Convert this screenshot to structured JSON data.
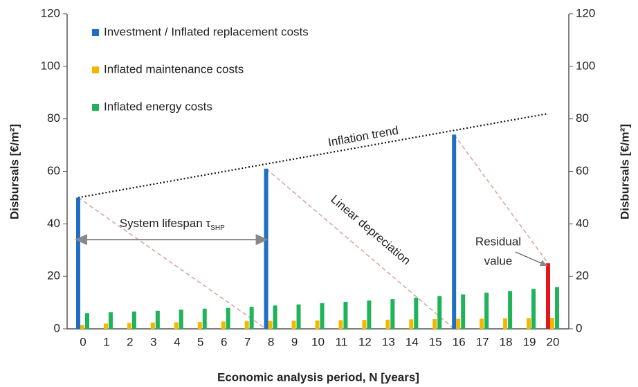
{
  "chart_data": {
    "type": "bar",
    "x_label": "Economic analysis period, N [years]",
    "y_label": "Disbursals [€/m²]",
    "y2_label": "Disbursals [€/m²]",
    "categories": [
      "0",
      "1",
      "2",
      "3",
      "4",
      "5",
      "6",
      "7",
      "8",
      "9",
      "10",
      "11",
      "12",
      "13",
      "14",
      "15",
      "16",
      "17",
      "18",
      "19",
      "20"
    ],
    "series": [
      {
        "name": "Investment / Inflated replacement costs",
        "color": "#1f6fc5",
        "values": [
          50,
          null,
          null,
          null,
          null,
          null,
          null,
          null,
          61,
          null,
          null,
          null,
          null,
          null,
          null,
          null,
          74,
          null,
          null,
          null,
          25
        ],
        "highlight": {
          "index": 20,
          "color": "#e8141b"
        }
      },
      {
        "name": "Inflated maintenance costs",
        "color": "#f2b800",
        "values": [
          1.5,
          2,
          2.2,
          2.4,
          2.5,
          2.6,
          2.8,
          3,
          3,
          3.1,
          3.2,
          3.3,
          3.4,
          3.5,
          3.6,
          3.7,
          3.8,
          3.9,
          4,
          4.1,
          4.2
        ]
      },
      {
        "name": "Inflated energy costs",
        "color": "#1fb35a",
        "values": [
          6.0,
          6.3,
          6.6,
          6.9,
          7.3,
          7.7,
          8.0,
          8.4,
          8.9,
          9.3,
          9.8,
          10.3,
          10.8,
          11.3,
          11.9,
          12.5,
          13.1,
          13.8,
          14.4,
          15.2,
          15.9
        ]
      }
    ],
    "ylim": [
      0,
      120
    ],
    "yticks": [
      0,
      20,
      40,
      60,
      80,
      100,
      120
    ],
    "y2lim": [
      0,
      120
    ],
    "y2ticks": [
      0,
      20,
      40,
      60,
      80,
      100,
      120
    ],
    "trend": {
      "label": "Inflation trend",
      "x": [
        0,
        20
      ],
      "y": [
        50,
        82
      ]
    },
    "depreciation": {
      "label": "Linear depreciation",
      "lines": [
        {
          "x": [
            0,
            8
          ],
          "y": [
            50,
            0
          ]
        },
        {
          "x": [
            8,
            16
          ],
          "y": [
            61,
            0
          ]
        },
        {
          "x": [
            16,
            20
          ],
          "y": [
            74,
            25
          ]
        }
      ]
    },
    "lifespan": {
      "label": "System lifespan τ",
      "subscript": "SHP",
      "x": [
        0,
        8
      ],
      "y": 34
    },
    "residual": {
      "lines": [
        "Residual",
        "value"
      ]
    }
  }
}
